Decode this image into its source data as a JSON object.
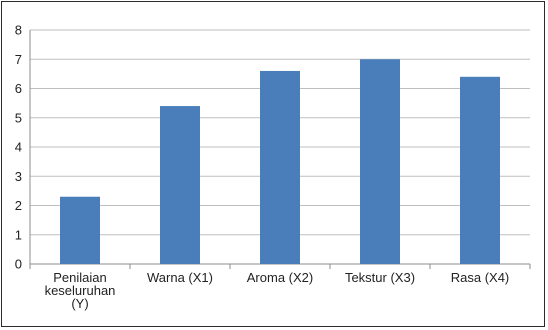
{
  "chart_data": {
    "type": "bar",
    "title": "",
    "xlabel": "",
    "ylabel": "",
    "categories": [
      [
        "Penilaian",
        "keseluruhan",
        "(Y)"
      ],
      [
        "Warna (X1)"
      ],
      [
        "Aroma (X2)"
      ],
      [
        "Tekstur (X3)"
      ],
      [
        "Rasa (X4)"
      ]
    ],
    "values": [
      2.3,
      5.4,
      6.6,
      7.0,
      6.4
    ],
    "ylim": [
      0,
      8
    ],
    "yticks": [
      0,
      1,
      2,
      3,
      4,
      5,
      6,
      7,
      8
    ],
    "grid": true,
    "legend": "none",
    "colors": {
      "bar": "#4a7ebb",
      "grid": "#bfbfbf",
      "axis": "#8c8c8c",
      "frame": "#2b2b2b"
    }
  }
}
